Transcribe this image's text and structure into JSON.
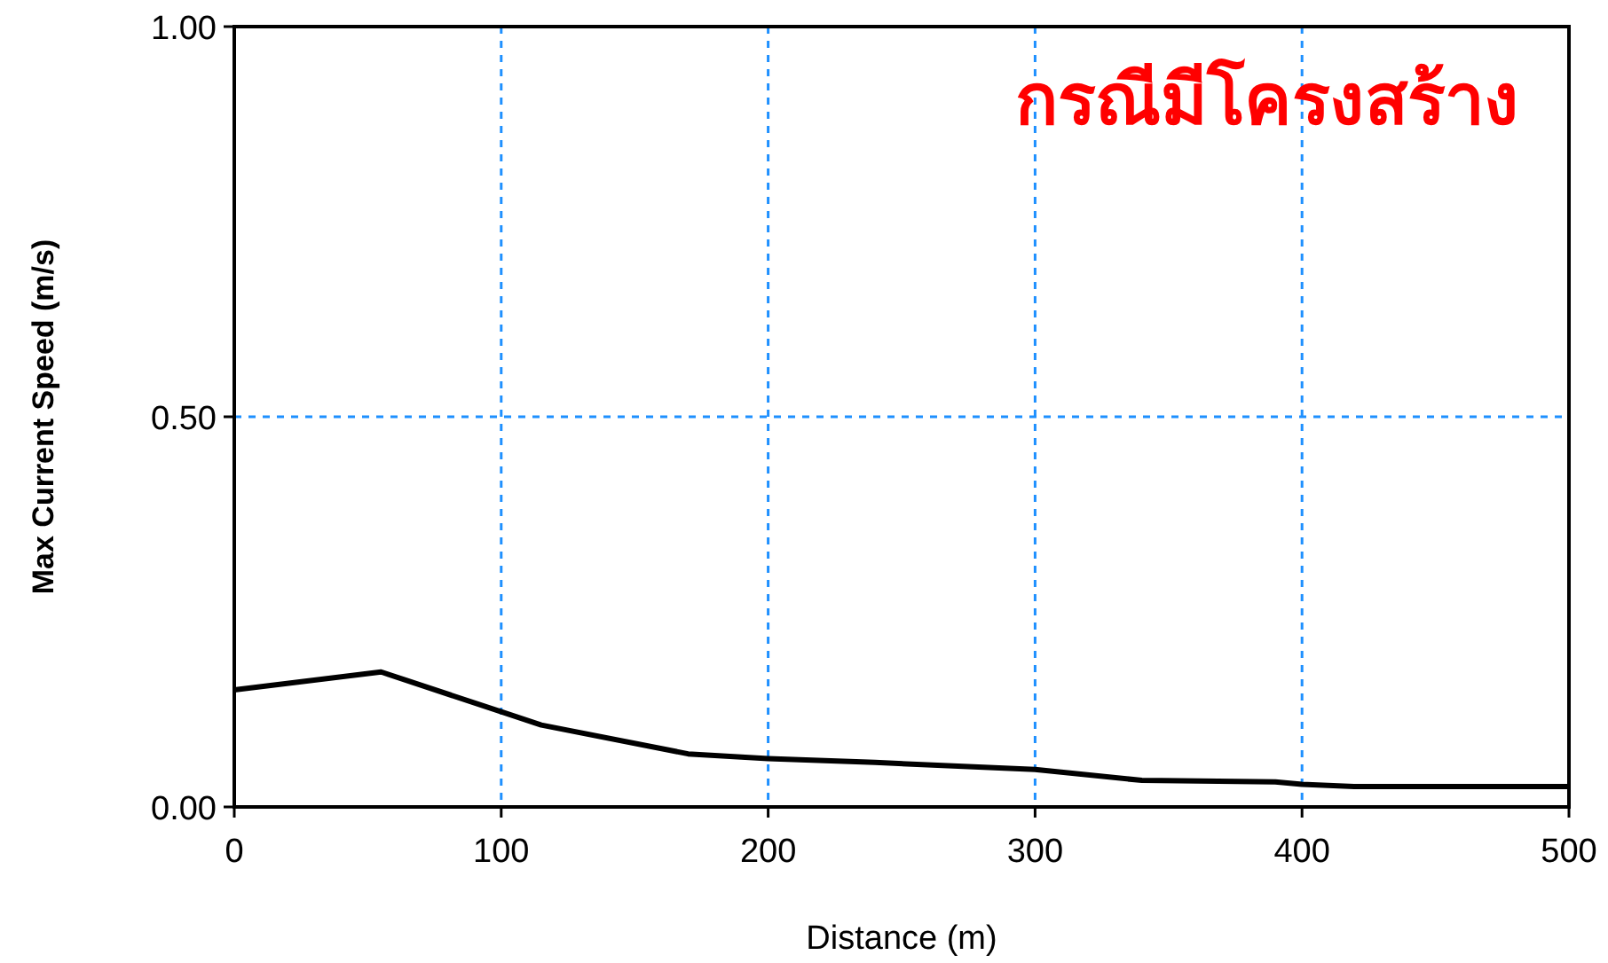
{
  "chart_data": {
    "type": "line",
    "xlabel": "Distance (m)",
    "ylabel": "Max Current Speed (m/s)",
    "annotations": [
      "กรณีมีโครงสร้าง"
    ],
    "x": [
      0,
      55,
      100,
      115,
      170,
      200,
      240,
      300,
      340,
      390,
      400,
      420,
      500
    ],
    "series": [
      {
        "color": "#000000",
        "values": [
          0.15,
          0.173,
          0.122,
          0.105,
          0.068,
          0.062,
          0.057,
          0.048,
          0.034,
          0.032,
          0.029,
          0.026,
          0.026
        ]
      }
    ],
    "xlim": [
      0,
      500
    ],
    "ylim": [
      0,
      1
    ],
    "xticks": [
      0,
      100,
      200,
      300,
      400,
      500
    ],
    "yticks": [
      {
        "value": 0,
        "label": "0.00"
      },
      {
        "value": 0.5,
        "label": "0.50"
      },
      {
        "value": 1,
        "label": "1.00"
      }
    ],
    "grid": true
  }
}
